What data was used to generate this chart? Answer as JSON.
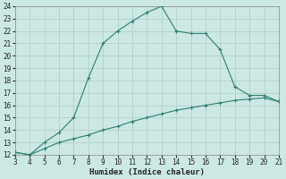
{
  "xlabel": "Humidex (Indice chaleur)",
  "line_color": "#2d7d6e",
  "background_color": "#cce8e4",
  "grid_color": "#aaccc8",
  "x_upper": [
    3,
    4,
    5,
    6,
    7,
    8,
    9,
    10,
    11,
    12,
    13,
    14,
    15,
    16,
    17,
    18,
    19,
    20,
    21
  ],
  "y_upper": [
    12.2,
    12.0,
    13.0,
    13.8,
    15.0,
    18.2,
    21.0,
    22.0,
    22.8,
    23.5,
    24.0,
    22.0,
    21.8,
    21.8,
    20.5,
    17.5,
    16.8,
    16.8,
    16.3
  ],
  "x_lower": [
    3,
    4,
    5,
    6,
    7,
    8,
    9,
    10,
    11,
    12,
    13,
    14,
    15,
    16,
    17,
    18,
    19,
    20,
    21
  ],
  "y_lower": [
    12.2,
    12.0,
    12.5,
    13.0,
    13.3,
    13.6,
    14.0,
    14.3,
    14.7,
    15.0,
    15.3,
    15.6,
    15.8,
    16.0,
    16.2,
    16.4,
    16.5,
    16.6,
    16.3
  ],
  "xlim": [
    3,
    21
  ],
  "ylim": [
    12,
    24
  ],
  "xticks": [
    3,
    4,
    5,
    6,
    7,
    8,
    9,
    10,
    11,
    12,
    13,
    14,
    15,
    16,
    17,
    18,
    19,
    20,
    21
  ],
  "yticks": [
    12,
    13,
    14,
    15,
    16,
    17,
    18,
    19,
    20,
    21,
    22,
    23,
    24
  ]
}
